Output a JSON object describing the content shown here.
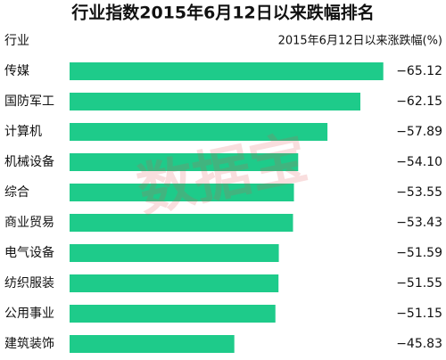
{
  "chart_data": {
    "type": "bar",
    "orientation": "horizontal",
    "title": "行业指数2015年6月12日以来跌幅排名",
    "category_header": "行业",
    "value_header": "2015年6月12日以来涨跌幅(%)",
    "watermark": "数据宝",
    "categories": [
      "传媒",
      "国防军工",
      "计算机",
      "机械设备",
      "综合",
      "商业贸易",
      "电气设备",
      "纺织服装",
      "公用事业",
      "建筑装饰"
    ],
    "values": [
      -65.12,
      -62.15,
      -57.89,
      -54.1,
      -53.55,
      -53.43,
      -51.59,
      -51.55,
      -51.15,
      -45.83
    ],
    "value_labels": [
      "−65.12",
      "−62.15",
      "−57.89",
      "−54.10",
      "−53.55",
      "−53.43",
      "−51.59",
      "−51.55",
      "−51.15",
      "−45.83"
    ],
    "color": "#1ecb8a",
    "xlim": [
      -24.5,
      -65.5
    ]
  }
}
